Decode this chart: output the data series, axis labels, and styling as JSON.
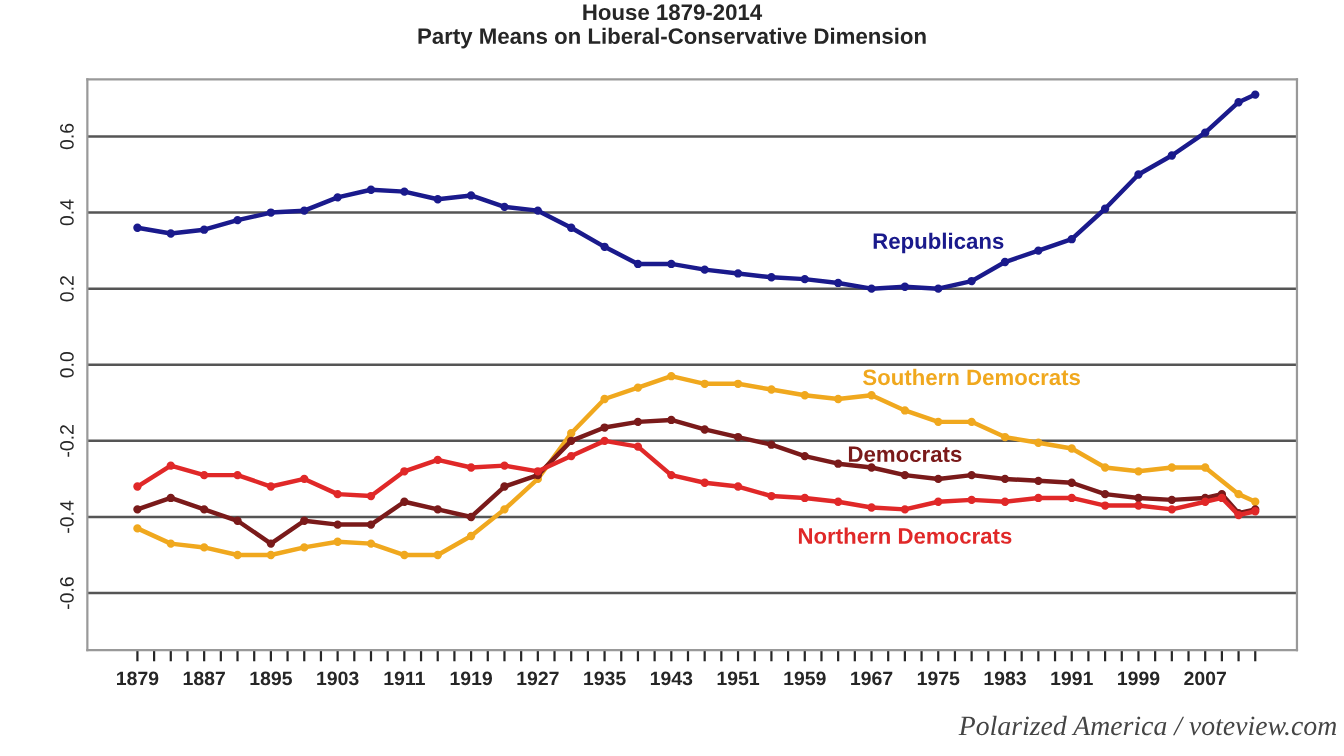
{
  "chart_data": {
    "type": "line",
    "title": "House 1879-2014\nParty Means on Liberal-Conservative Dimension",
    "series": [
      {
        "name": "Republicans",
        "color": "#1a1a8c",
        "x": [
          1879,
          1883,
          1887,
          1891,
          1895,
          1899,
          1903,
          1907,
          1911,
          1915,
          1919,
          1923,
          1927,
          1931,
          1935,
          1939,
          1943,
          1947,
          1951,
          1955,
          1959,
          1963,
          1967,
          1971,
          1975,
          1979,
          1983,
          1987,
          1991,
          1995,
          1999,
          2003,
          2007,
          2011,
          2013
        ],
        "values": [
          0.36,
          0.345,
          0.355,
          0.38,
          0.4,
          0.405,
          0.44,
          0.46,
          0.455,
          0.435,
          0.445,
          0.415,
          0.405,
          0.36,
          0.31,
          0.265,
          0.265,
          0.25,
          0.24,
          0.23,
          0.225,
          0.215,
          0.2,
          0.205,
          0.2,
          0.22,
          0.27,
          0.3,
          0.33,
          0.41,
          0.5,
          0.55,
          0.61,
          0.69,
          0.71
        ]
      },
      {
        "name": "Southern Democrats",
        "color": "#f0a81e",
        "x": [
          1879,
          1883,
          1887,
          1891,
          1895,
          1899,
          1903,
          1907,
          1911,
          1915,
          1919,
          1923,
          1927,
          1931,
          1935,
          1939,
          1943,
          1947,
          1951,
          1955,
          1959,
          1963,
          1967,
          1971,
          1975,
          1979,
          1983,
          1987,
          1991,
          1995,
          1999,
          2003,
          2007,
          2011,
          2013
        ],
        "values": [
          -0.43,
          -0.47,
          -0.48,
          -0.5,
          -0.5,
          -0.48,
          -0.465,
          -0.47,
          -0.5,
          -0.5,
          -0.45,
          -0.38,
          -0.3,
          -0.18,
          -0.09,
          -0.06,
          -0.03,
          -0.05,
          -0.05,
          -0.065,
          -0.08,
          -0.09,
          -0.08,
          -0.12,
          -0.15,
          -0.15,
          -0.19,
          -0.205,
          -0.22,
          -0.27,
          -0.28,
          -0.27,
          -0.27,
          -0.34,
          -0.36
        ]
      },
      {
        "name": "Democrats",
        "color": "#7a1a1a",
        "x": [
          1879,
          1883,
          1887,
          1891,
          1895,
          1899,
          1903,
          1907,
          1911,
          1915,
          1919,
          1923,
          1927,
          1931,
          1935,
          1939,
          1943,
          1947,
          1951,
          1955,
          1959,
          1963,
          1967,
          1971,
          1975,
          1979,
          1983,
          1987,
          1991,
          1995,
          1999,
          2003,
          2007,
          2009,
          2011,
          2013
        ],
        "values": [
          -0.38,
          -0.35,
          -0.38,
          -0.41,
          -0.47,
          -0.41,
          -0.42,
          -0.42,
          -0.36,
          -0.38,
          -0.4,
          -0.32,
          -0.29,
          -0.2,
          -0.165,
          -0.15,
          -0.145,
          -0.17,
          -0.19,
          -0.21,
          -0.24,
          -0.26,
          -0.27,
          -0.29,
          -0.3,
          -0.29,
          -0.3,
          -0.305,
          -0.31,
          -0.34,
          -0.35,
          -0.355,
          -0.35,
          -0.34,
          -0.39,
          -0.38
        ]
      },
      {
        "name": "Northern Democrats",
        "color": "#e02828",
        "x": [
          1879,
          1883,
          1887,
          1891,
          1895,
          1899,
          1903,
          1907,
          1911,
          1915,
          1919,
          1923,
          1927,
          1931,
          1935,
          1939,
          1943,
          1947,
          1951,
          1955,
          1959,
          1963,
          1967,
          1971,
          1975,
          1979,
          1983,
          1987,
          1991,
          1995,
          1999,
          2003,
          2007,
          2009,
          2011,
          2013
        ],
        "values": [
          -0.32,
          -0.265,
          -0.29,
          -0.29,
          -0.32,
          -0.3,
          -0.34,
          -0.345,
          -0.28,
          -0.25,
          -0.27,
          -0.265,
          -0.28,
          -0.24,
          -0.2,
          -0.215,
          -0.29,
          -0.31,
          -0.32,
          -0.345,
          -0.35,
          -0.36,
          -0.375,
          -0.38,
          -0.36,
          -0.355,
          -0.36,
          -0.35,
          -0.35,
          -0.37,
          -0.37,
          -0.38,
          -0.36,
          -0.35,
          -0.395,
          -0.385
        ]
      }
    ],
    "xlim": [
      1873,
      2018
    ],
    "ylim": [
      -0.75,
      0.75
    ],
    "xticks": [
      1879,
      {
        "value": 1881,
        "label": null
      },
      {
        "value": 1883,
        "label": null
      },
      {
        "value": 1885,
        "label": null
      },
      1887,
      {
        "value": 1889,
        "label": null
      },
      {
        "value": 1891,
        "label": null
      },
      {
        "value": 1893,
        "label": null
      },
      1895,
      {
        "value": 1897,
        "label": null
      },
      {
        "value": 1899,
        "label": null
      },
      {
        "value": 1901,
        "label": null
      },
      1903,
      {
        "value": 1905,
        "label": null
      },
      {
        "value": 1907,
        "label": null
      },
      {
        "value": 1909,
        "label": null
      },
      1911,
      {
        "value": 1913,
        "label": null
      },
      {
        "value": 1915,
        "label": null
      },
      {
        "value": 1917,
        "label": null
      },
      1919,
      {
        "value": 1921,
        "label": null
      },
      {
        "value": 1923,
        "label": null
      },
      {
        "value": 1925,
        "label": null
      },
      1927,
      {
        "value": 1929,
        "label": null
      },
      {
        "value": 1931,
        "label": null
      },
      {
        "value": 1933,
        "label": null
      },
      1935,
      {
        "value": 1937,
        "label": null
      },
      {
        "value": 1939,
        "label": null
      },
      {
        "value": 1941,
        "label": null
      },
      1943,
      {
        "value": 1945,
        "label": null
      },
      {
        "value": 1947,
        "label": null
      },
      {
        "value": 1949,
        "label": null
      },
      1951,
      {
        "value": 1953,
        "label": null
      },
      {
        "value": 1955,
        "label": null
      },
      {
        "value": 1957,
        "label": null
      },
      1959,
      {
        "value": 1961,
        "label": null
      },
      {
        "value": 1963,
        "label": null
      },
      {
        "value": 1965,
        "label": null
      },
      1967,
      {
        "value": 1969,
        "label": null
      },
      {
        "value": 1971,
        "label": null
      },
      {
        "value": 1973,
        "label": null
      },
      1975,
      {
        "value": 1977,
        "label": null
      },
      {
        "value": 1979,
        "label": null
      },
      {
        "value": 1981,
        "label": null
      },
      1983,
      {
        "value": 1985,
        "label": null
      },
      {
        "value": 1987,
        "label": null
      },
      {
        "value": 1989,
        "label": null
      },
      1991,
      {
        "value": 1993,
        "label": null
      },
      {
        "value": 1995,
        "label": null
      },
      {
        "value": 1997,
        "label": null
      },
      1999,
      {
        "value": 2001,
        "label": null
      },
      {
        "value": 2003,
        "label": null
      },
      {
        "value": 2005,
        "label": null
      },
      2007,
      {
        "value": 2009,
        "label": null
      },
      {
        "value": 2011,
        "label": null
      },
      {
        "value": 2013,
        "label": null
      }
    ],
    "yticks": [
      {
        "value": -0.6,
        "label": "-0.6"
      },
      {
        "value": -0.4,
        "label": "-0.4"
      },
      {
        "value": -0.2,
        "label": "-0.2"
      },
      {
        "value": 0.0,
        "label": "0.0"
      },
      0.2,
      0.4,
      0.6
    ],
    "grid": "y",
    "marker": "circle",
    "line_style": "solid",
    "legend": false,
    "annotations": [
      "Polarized America / voteview.com"
    ]
  }
}
